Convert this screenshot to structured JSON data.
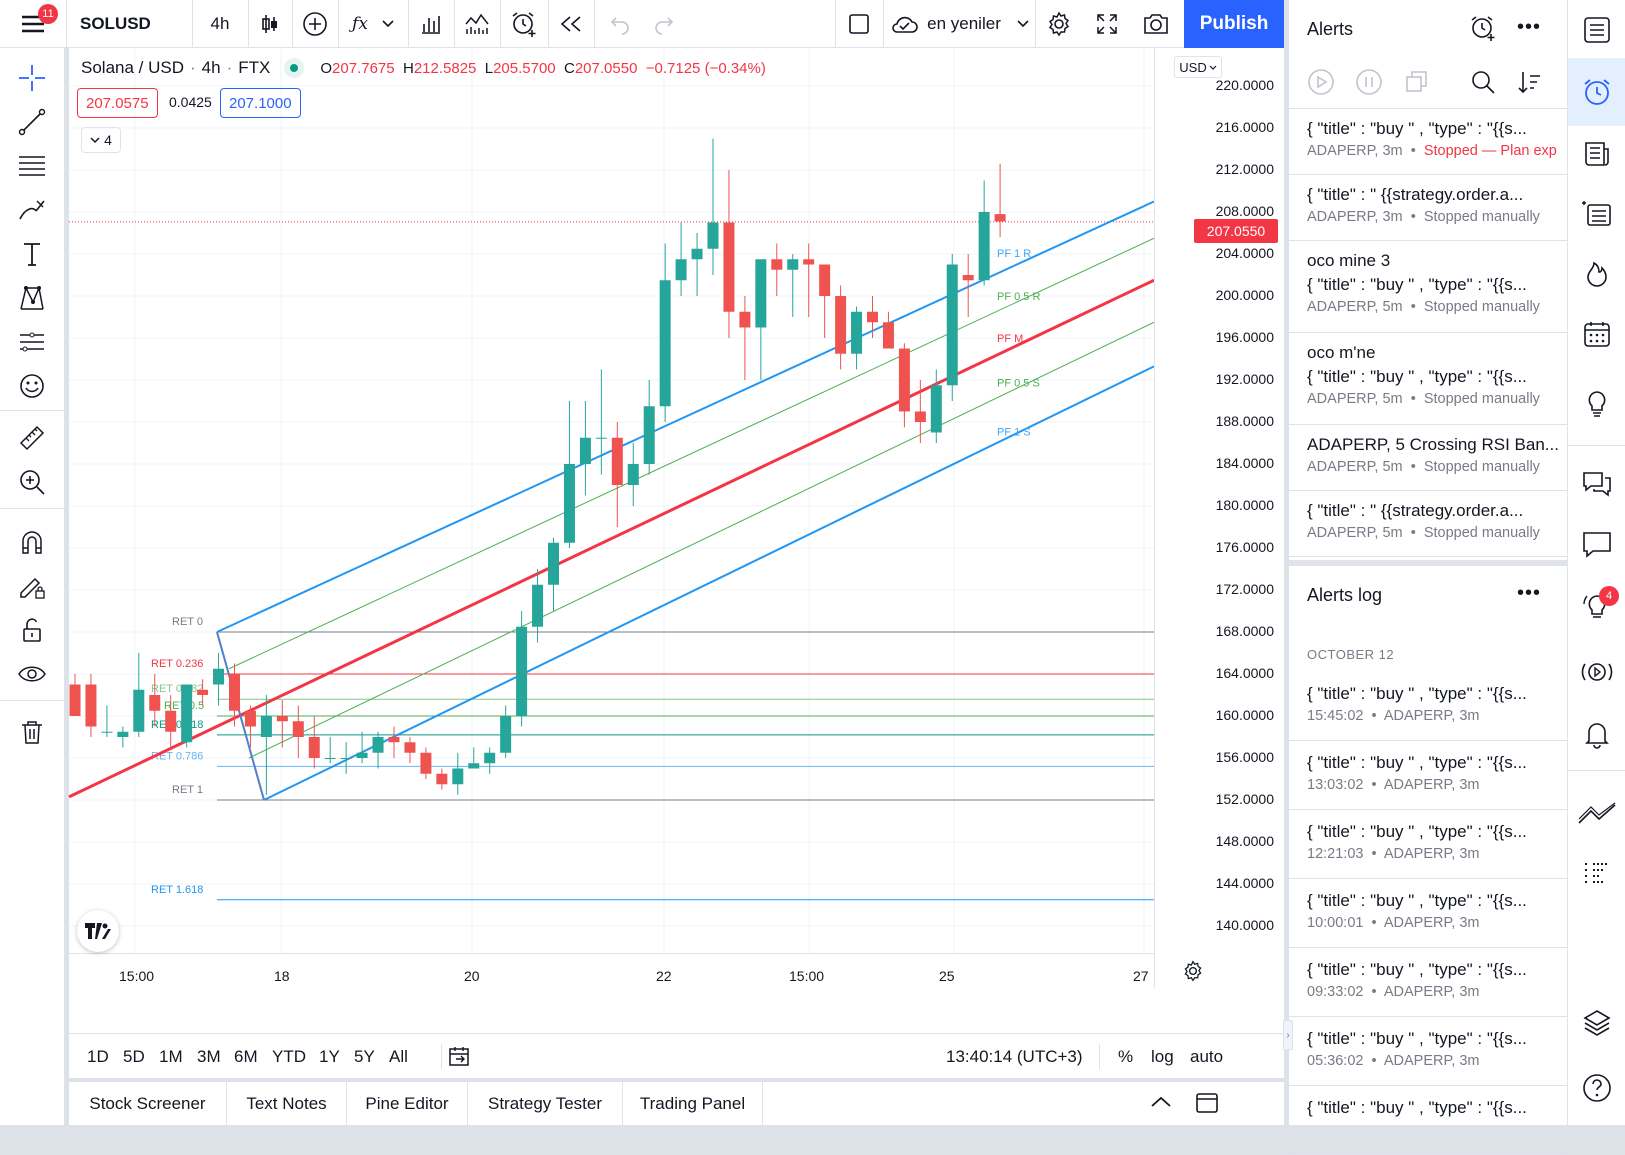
{
  "topbar": {
    "menu_badge": "11",
    "symbol": "SOLUSD",
    "interval": "4h",
    "layout_name": "en yeniler",
    "publish_label": "Publish"
  },
  "legend": {
    "name": "Solana / USD",
    "interval": "4h",
    "exchange": "FTX",
    "o_label": "O",
    "o_value": "207.7675",
    "h_label": "H",
    "h_value": "212.5825",
    "l_label": "L",
    "l_value": "205.5700",
    "c_label": "C",
    "c_value": "207.0550",
    "change": "−0.7125 (−0.34%)",
    "bid": "207.0575",
    "spread": "0.0425",
    "ask": "207.1000",
    "indicators_count": "4"
  },
  "yaxis": {
    "currency": "USD",
    "labels": [
      "220.0000",
      "216.0000",
      "212.0000",
      "208.0000",
      "204.0000",
      "200.0000",
      "196.0000",
      "192.0000",
      "188.0000",
      "184.0000",
      "180.0000",
      "176.0000",
      "172.0000",
      "168.0000",
      "164.0000",
      "160.0000",
      "156.0000",
      "152.0000",
      "148.0000",
      "144.0000",
      "140.0000"
    ],
    "current_price": "207.0550"
  },
  "xaxis": {
    "labels": [
      "15:00",
      "18",
      "20",
      "22",
      "15:00",
      "25",
      "27"
    ]
  },
  "drawing": {
    "retracements": [
      "RET 0",
      "RET 0.236",
      "RET 0.382",
      "RET 0.5",
      "RET 0.618",
      "RET 0.786",
      "RET 1",
      "RET 1.618"
    ],
    "pitchfork": [
      "PF 1 R",
      "PF 0.5 R",
      "PF M",
      "PF 0.5 S",
      "PF 1 S"
    ]
  },
  "ranges": [
    "1D",
    "5D",
    "1M",
    "3M",
    "6M",
    "YTD",
    "1Y",
    "5Y",
    "All"
  ],
  "bottom_right": {
    "time": "13:40:14 (UTC+3)",
    "percent": "%",
    "log": "log",
    "auto": "auto"
  },
  "tabs": [
    "Stock Screener",
    "Text Notes",
    "Pine Editor",
    "Strategy Tester",
    "Trading Panel"
  ],
  "alerts_panel": {
    "title": "Alerts",
    "items": [
      {
        "name": "{ \"title\" : \"buy \" , \"type\" : \"{{s...",
        "symbol": "ADAPERP, 3m",
        "status": "Stopped — Plan exp",
        "red": true
      },
      {
        "name": "{ \"title\" : \" {{strategy.order.a...",
        "symbol": "ADAPERP, 3m",
        "status": "Stopped manually",
        "red": false
      },
      {
        "title": "oco mine 3",
        "name": "{ \"title\" : \"buy \" , \"type\" : \"{{s...",
        "symbol": "ADAPERP, 5m",
        "status": "Stopped manually",
        "red": false
      },
      {
        "title": "oco m'ne",
        "name": "{ \"title\" : \"buy \" , \"type\" : \"{{s...",
        "symbol": "ADAPERP, 5m",
        "status": "Stopped manually",
        "red": false
      },
      {
        "name": "ADAPERP, 5 Crossing RSI Ban...",
        "symbol": "ADAPERP, 5m",
        "status": "Stopped manually",
        "red": false
      },
      {
        "name": "{ \"title\" : \" {{strategy.order.a...",
        "symbol": "ADAPERP, 5m",
        "status": "Stopped manually",
        "red": false
      }
    ]
  },
  "alerts_log": {
    "title": "Alerts log",
    "date": "OCTOBER 12",
    "items": [
      {
        "name": "{ \"title\" : \"buy \" , \"type\" : \"{{s...",
        "time": "15:45:02",
        "symbol": "ADAPERP, 3m"
      },
      {
        "name": "{ \"title\" : \"buy \" , \"type\" : \"{{s...",
        "time": "13:03:02",
        "symbol": "ADAPERP, 3m"
      },
      {
        "name": "{ \"title\" : \"buy \" , \"type\" : \"{{s...",
        "time": "12:21:03",
        "symbol": "ADAPERP, 3m"
      },
      {
        "name": "{ \"title\" : \"buy \" , \"type\" : \"{{s...",
        "time": "10:00:01",
        "symbol": "ADAPERP, 3m"
      },
      {
        "name": "{ \"title\" : \"buy \" , \"type\" : \"{{s...",
        "time": "09:33:02",
        "symbol": "ADAPERP, 3m"
      },
      {
        "name": "{ \"title\" : \"buy \" , \"type\" : \"{{s...",
        "time": "05:36:02",
        "symbol": "ADAPERP, 3m"
      },
      {
        "name": "{ \"title\" : \"buy \" , \"type\" : \"{{s...",
        "time": "",
        "symbol": ""
      }
    ]
  },
  "sidebar_badge": "4",
  "colors": {
    "up": "#26a69a",
    "down": "#ef5350",
    "accent": "#2962ff",
    "pf_outer": "#2196f3",
    "pf_median": "#f23645",
    "pf_half": "#4caf50"
  },
  "chart_data": {
    "type": "candlestick",
    "symbol": "SOLUSD",
    "interval": "4h",
    "ylim": [
      138,
      222
    ],
    "candles": [
      {
        "o": 163,
        "h": 164,
        "l": 160,
        "c": 160
      },
      {
        "o": 163,
        "h": 164,
        "l": 158,
        "c": 159
      },
      {
        "o": 158.5,
        "h": 161,
        "l": 158,
        "c": 158.5
      },
      {
        "o": 158,
        "h": 159,
        "l": 157,
        "c": 158.5
      },
      {
        "o": 158.5,
        "h": 166,
        "l": 158,
        "c": 162.5
      },
      {
        "o": 162,
        "h": 164,
        "l": 159,
        "c": 160.5
      },
      {
        "o": 160.5,
        "h": 162,
        "l": 157,
        "c": 158.5
      },
      {
        "o": 157.5,
        "h": 163,
        "l": 157,
        "c": 163
      },
      {
        "o": 162.5,
        "h": 163.5,
        "l": 161,
        "c": 162
      },
      {
        "o": 163,
        "h": 166,
        "l": 161,
        "c": 164.5
      },
      {
        "o": 164,
        "h": 165,
        "l": 159,
        "c": 160.5
      },
      {
        "o": 160.5,
        "h": 161,
        "l": 157,
        "c": 159
      },
      {
        "o": 158,
        "h": 162,
        "l": 152.5,
        "c": 160
      },
      {
        "o": 160,
        "h": 161.5,
        "l": 157,
        "c": 159.5
      },
      {
        "o": 159.5,
        "h": 161,
        "l": 156,
        "c": 158
      },
      {
        "o": 158,
        "h": 160,
        "l": 155,
        "c": 156
      },
      {
        "o": 156,
        "h": 158,
        "l": 155.5,
        "c": 156
      },
      {
        "o": 156,
        "h": 157.5,
        "l": 154.5,
        "c": 156
      },
      {
        "o": 156,
        "h": 158.5,
        "l": 155.5,
        "c": 156.5
      },
      {
        "o": 156.5,
        "h": 158.5,
        "l": 155,
        "c": 158
      },
      {
        "o": 158,
        "h": 159,
        "l": 156,
        "c": 157.5
      },
      {
        "o": 157.5,
        "h": 158,
        "l": 155.5,
        "c": 156.5
      },
      {
        "o": 156.5,
        "h": 157,
        "l": 154,
        "c": 154.5
      },
      {
        "o": 154.5,
        "h": 155,
        "l": 153,
        "c": 153.5
      },
      {
        "o": 153.5,
        "h": 156.5,
        "l": 152.5,
        "c": 155
      },
      {
        "o": 155,
        "h": 157,
        "l": 155,
        "c": 155.5
      },
      {
        "o": 155.5,
        "h": 157,
        "l": 154.5,
        "c": 156.5
      },
      {
        "o": 156.5,
        "h": 161,
        "l": 156,
        "c": 160
      },
      {
        "o": 160,
        "h": 170,
        "l": 159,
        "c": 168.5
      },
      {
        "o": 168.5,
        "h": 174,
        "l": 167,
        "c": 172.5
      },
      {
        "o": 172.5,
        "h": 177,
        "l": 170,
        "c": 176.5
      },
      {
        "o": 176.5,
        "h": 190,
        "l": 176,
        "c": 184
      },
      {
        "o": 184,
        "h": 190,
        "l": 181,
        "c": 186.5
      },
      {
        "o": 186.5,
        "h": 193,
        "l": 183,
        "c": 186.5
      },
      {
        "o": 186.5,
        "h": 188,
        "l": 178,
        "c": 182
      },
      {
        "o": 182,
        "h": 186,
        "l": 180,
        "c": 184
      },
      {
        "o": 184,
        "h": 192,
        "l": 183,
        "c": 189.5
      },
      {
        "o": 189.5,
        "h": 205,
        "l": 188,
        "c": 201.5
      },
      {
        "o": 201.5,
        "h": 207,
        "l": 200,
        "c": 203.5
      },
      {
        "o": 203.5,
        "h": 206,
        "l": 200,
        "c": 204.5
      },
      {
        "o": 204.5,
        "h": 215,
        "l": 202,
        "c": 207
      },
      {
        "o": 207,
        "h": 212,
        "l": 196,
        "c": 198.5
      },
      {
        "o": 198.5,
        "h": 200,
        "l": 192,
        "c": 197
      },
      {
        "o": 197,
        "h": 203,
        "l": 192,
        "c": 203.5
      },
      {
        "o": 203.5,
        "h": 205,
        "l": 200,
        "c": 202.5
      },
      {
        "o": 202.5,
        "h": 204,
        "l": 198,
        "c": 203.5
      },
      {
        "o": 203.5,
        "h": 205,
        "l": 198,
        "c": 203
      },
      {
        "o": 203,
        "h": 203,
        "l": 196,
        "c": 200
      },
      {
        "o": 200,
        "h": 201,
        "l": 193,
        "c": 194.5
      },
      {
        "o": 194.5,
        "h": 199,
        "l": 193,
        "c": 198.5
      },
      {
        "o": 198.5,
        "h": 200,
        "l": 196,
        "c": 197.5
      },
      {
        "o": 197.5,
        "h": 198.5,
        "l": 195,
        "c": 195
      },
      {
        "o": 195,
        "h": 195.5,
        "l": 187.5,
        "c": 189
      },
      {
        "o": 189,
        "h": 192,
        "l": 186,
        "c": 188
      },
      {
        "o": 187,
        "h": 193,
        "l": 186,
        "c": 191.5
      },
      {
        "o": 191.5,
        "h": 204,
        "l": 190,
        "c": 203
      },
      {
        "o": 202,
        "h": 204,
        "l": 198,
        "c": 201.5
      },
      {
        "o": 201.5,
        "h": 211,
        "l": 201,
        "c": 208
      },
      {
        "o": 207.8,
        "h": 212.6,
        "l": 205.6,
        "c": 207.1
      }
    ]
  }
}
